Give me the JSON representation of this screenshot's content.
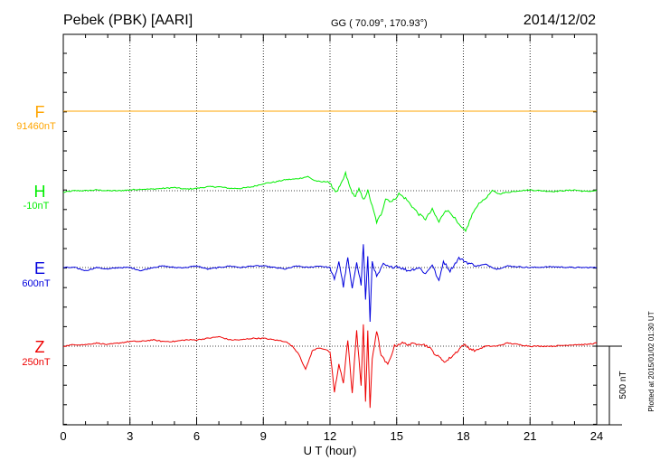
{
  "header": {
    "station": "Pebek (PBK)  [AARI]",
    "coords": "GG ( 70.09°, 170.93°)",
    "date": "2014/12/02"
  },
  "colors": {
    "F": "#ffa500",
    "H": "#00ee00",
    "E": "#0000dd",
    "Z": "#ee0000",
    "axis": "#000000"
  },
  "side_note": "Plotted at 2015/01/02 01:30 UT",
  "chart_data": {
    "type": "line",
    "xlabel": "U T (hour)",
    "xlim": [
      0,
      24
    ],
    "xticks": [
      0,
      3,
      6,
      9,
      12,
      15,
      18,
      21,
      24
    ],
    "xtick_labels": [
      "0",
      "3",
      "6",
      "9",
      "12",
      "15",
      "18",
      "21",
      "24"
    ],
    "scale_bar_label": "500 nT",
    "scale_bar_nT": 500,
    "series": [
      {
        "key": "F",
        "name": "F",
        "baseline_label": "91460nT",
        "x": [
          0,
          24
        ],
        "y": [
          0,
          0
        ]
      },
      {
        "key": "H",
        "name": "H",
        "baseline_label": "-10nT",
        "x": [
          0,
          0.5,
          1,
          1.5,
          2,
          2.5,
          3,
          3.5,
          4,
          4.5,
          5,
          5.5,
          6,
          6.5,
          7,
          7.5,
          8,
          8.5,
          9,
          9.5,
          10,
          10.5,
          11,
          11.3,
          11.6,
          11.9,
          12.1,
          12.3,
          12.5,
          12.7,
          12.9,
          13.1,
          13.3,
          13.5,
          13.7,
          13.9,
          14.1,
          14.3,
          14.5,
          14.8,
          15.1,
          15.4,
          15.7,
          16,
          16.3,
          16.6,
          16.9,
          17.2,
          17.5,
          17.8,
          18.1,
          18.4,
          18.7,
          19,
          19.3,
          19.6,
          20,
          20.5,
          21,
          21.5,
          22,
          22.5,
          23,
          23.5,
          24
        ],
        "y": [
          -10,
          0,
          0,
          5,
          0,
          0,
          5,
          10,
          10,
          15,
          20,
          10,
          15,
          25,
          25,
          15,
          15,
          25,
          45,
          55,
          70,
          75,
          90,
          65,
          55,
          60,
          25,
          -10,
          40,
          110,
          20,
          -40,
          10,
          -60,
          0,
          -100,
          -200,
          -150,
          -50,
          -70,
          -20,
          -50,
          -100,
          -150,
          -180,
          -120,
          -200,
          -120,
          -150,
          -220,
          -260,
          -150,
          -80,
          -50,
          0,
          -20,
          -10,
          0,
          5,
          0,
          -5,
          0,
          5,
          -5,
          0
        ]
      },
      {
        "key": "E",
        "name": "E",
        "baseline_label": "600nT",
        "x": [
          0,
          0.5,
          1,
          1.5,
          2,
          2.5,
          3,
          3.5,
          4,
          4.5,
          5,
          5.5,
          6,
          6.5,
          7,
          7.5,
          8,
          8.5,
          9,
          9.5,
          10,
          10.5,
          11,
          11.5,
          12,
          12.2,
          12.4,
          12.6,
          12.8,
          13,
          13.2,
          13.4,
          13.5,
          13.6,
          13.7,
          13.8,
          13.9,
          14.1,
          14.4,
          14.7,
          15,
          15.5,
          16,
          16.3,
          16.6,
          16.9,
          17.1,
          17.4,
          17.8,
          18.2,
          18.6,
          19,
          19.5,
          20,
          21,
          22,
          23,
          24
        ],
        "y": [
          0,
          0,
          -20,
          0,
          -10,
          0,
          0,
          -20,
          0,
          10,
          0,
          0,
          10,
          -10,
          0,
          10,
          0,
          10,
          10,
          0,
          -10,
          10,
          0,
          10,
          0,
          -80,
          40,
          -120,
          60,
          -140,
          40,
          -110,
          150,
          -200,
          70,
          -340,
          40,
          -60,
          20,
          0,
          10,
          -20,
          0,
          -40,
          20,
          -90,
          40,
          -20,
          60,
          30,
          10,
          20,
          -10,
          10,
          0,
          5,
          0,
          0
        ]
      },
      {
        "key": "Z",
        "name": "Z",
        "baseline_label": "250nT",
        "x": [
          0,
          0.5,
          1,
          1.5,
          2,
          2.5,
          3,
          3.5,
          4,
          4.5,
          5,
          5.5,
          6,
          6.5,
          7,
          7.5,
          8,
          8.5,
          9,
          9.5,
          10,
          10.3,
          10.6,
          10.9,
          11.2,
          11.5,
          11.8,
          12,
          12.2,
          12.4,
          12.6,
          12.8,
          13,
          13.2,
          13.4,
          13.5,
          13.6,
          13.7,
          13.8,
          13.9,
          14.1,
          14.3,
          14.6,
          14.9,
          15.2,
          15.6,
          16,
          16.4,
          16.8,
          17.2,
          17.6,
          18,
          18.5,
          19,
          19.5,
          20,
          21,
          22,
          23,
          23.5,
          24
        ],
        "y": [
          0,
          10,
          10,
          20,
          10,
          20,
          30,
          30,
          40,
          30,
          30,
          40,
          40,
          50,
          60,
          40,
          40,
          50,
          50,
          40,
          30,
          0,
          -50,
          -150,
          -30,
          -10,
          -20,
          -40,
          -290,
          -120,
          -230,
          40,
          -300,
          100,
          -250,
          130,
          -350,
          100,
          -400,
          -80,
          100,
          -60,
          -120,
          0,
          20,
          10,
          20,
          0,
          -60,
          -100,
          -50,
          10,
          -30,
          0,
          0,
          20,
          0,
          0,
          10,
          10,
          20
        ]
      }
    ]
  }
}
